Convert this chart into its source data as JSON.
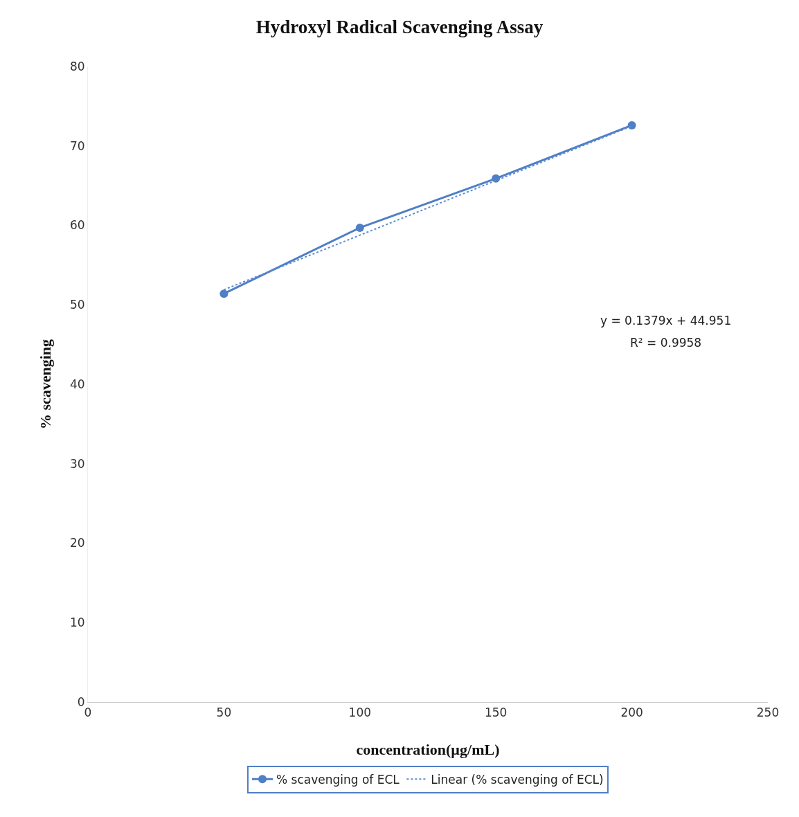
{
  "chart_data": {
    "type": "line",
    "title": "Hydroxyl Radical Scavenging Assay",
    "xlabel": "concentration(µg/mL)",
    "ylabel": "% scavenging",
    "x": [
      50,
      100,
      150,
      200
    ],
    "series": [
      {
        "name": "% scavenging of ECL",
        "color": "#4f7fc4",
        "values": [
          51.4,
          59.7,
          65.9,
          72.6
        ],
        "marker": "circle",
        "line_style": "solid"
      },
      {
        "name": "Linear (% scavenging of ECL)",
        "type": "line",
        "color": "#5b8bd6",
        "x": [
          50,
          200
        ],
        "values": [
          51.9,
          72.5
        ],
        "marker": "none",
        "line_style": "dotted"
      }
    ],
    "xlim": [
      0,
      250
    ],
    "xticks": [
      0,
      50,
      100,
      150,
      200,
      250
    ],
    "ylim": [
      0,
      80
    ],
    "yticks": [
      0,
      10,
      20,
      30,
      40,
      50,
      60,
      70,
      80
    ],
    "grid": false,
    "legend": "bottom",
    "annotations": [
      "y = 0.1379x + 44.951",
      "R² = 0.9958"
    ]
  }
}
